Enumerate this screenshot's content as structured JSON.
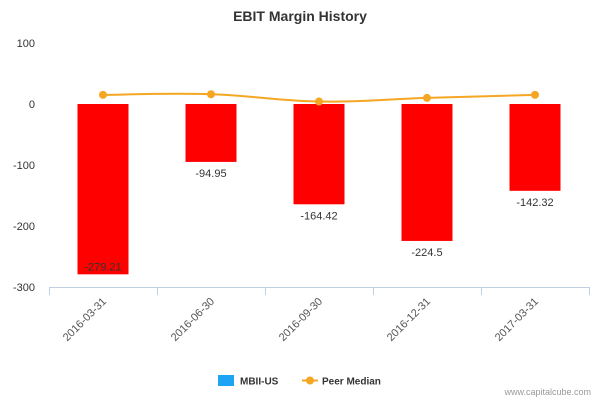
{
  "chart_data": {
    "type": "bar",
    "title": "EBIT Margin History",
    "categories": [
      "2016-03-31",
      "2016-06-30",
      "2016-09-30",
      "2016-12-31",
      "2017-03-31"
    ],
    "series": [
      {
        "name": "MBII-US",
        "type": "bar",
        "values": [
          -279.21,
          -94.95,
          -164.42,
          -224.5,
          -142.32
        ],
        "data_labels": [
          "-279.21",
          "-94.95",
          "-164.42",
          "-224.5",
          "-142.32"
        ],
        "color": "#ff0000",
        "legend_color": "#1fa3f5"
      },
      {
        "name": "Peer Median",
        "type": "line",
        "values": [
          15,
          16,
          4,
          10,
          15
        ],
        "color": "#f5a623"
      }
    ],
    "ylim": [
      -300,
      100
    ],
    "yticks": [
      100,
      0,
      -100,
      -200,
      -300
    ],
    "grid": false,
    "legend_position": "bottom-center"
  },
  "credit": "www.capitalcube.com"
}
